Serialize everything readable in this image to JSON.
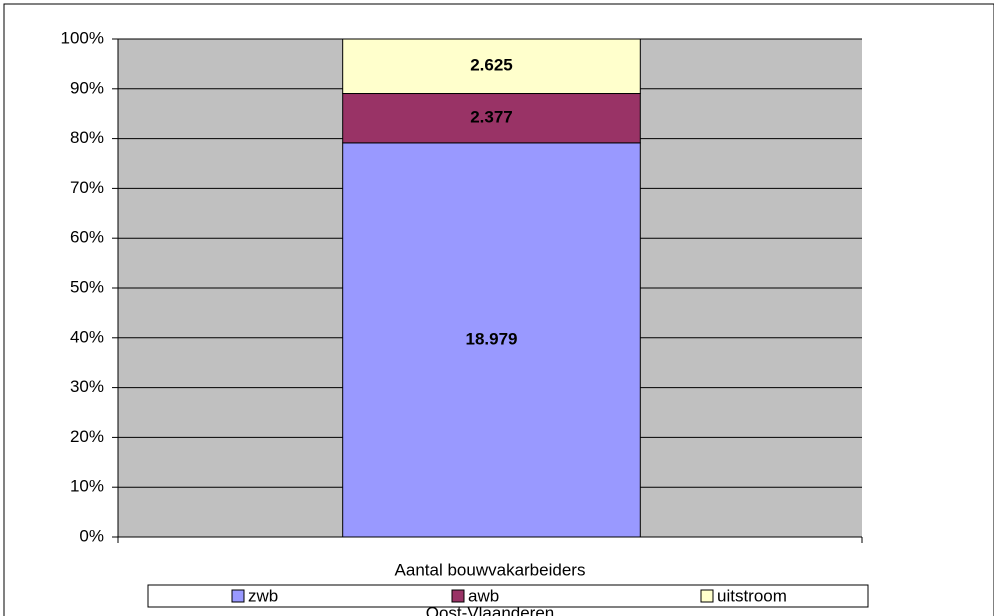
{
  "chart_data": {
    "type": "bar",
    "stacking": "percent",
    "categories": [
      "Aantal bouwvakarbeiders"
    ],
    "xlabel": "Oost-Vlaanderen",
    "series": [
      {
        "name": "zwb",
        "color": "#9999ff",
        "values": [
          18979
        ],
        "value_labels": [
          "18.979"
        ]
      },
      {
        "name": "awb",
        "color": "#993366",
        "values": [
          2377
        ],
        "value_labels": [
          "2.377"
        ]
      },
      {
        "name": "uitstroom",
        "color": "#ffffcc",
        "values": [
          2625
        ],
        "value_labels": [
          "2.625"
        ]
      }
    ],
    "ylim": [
      0,
      100
    ],
    "yticks": [
      {
        "value": 0,
        "label": "0%"
      },
      {
        "value": 10,
        "label": "10%"
      },
      {
        "value": 20,
        "label": "20%"
      },
      {
        "value": 30,
        "label": "30%"
      },
      {
        "value": 40,
        "label": "40%"
      },
      {
        "value": 50,
        "label": "50%"
      },
      {
        "value": 60,
        "label": "60%"
      },
      {
        "value": 70,
        "label": "70%"
      },
      {
        "value": 80,
        "label": "80%"
      },
      {
        "value": 90,
        "label": "90%"
      },
      {
        "value": 100,
        "label": "100%"
      }
    ],
    "grid": true,
    "legend": "bottom"
  }
}
